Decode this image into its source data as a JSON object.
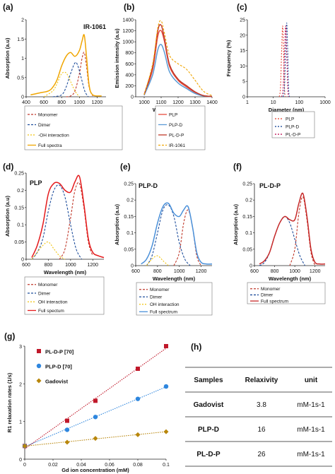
{
  "chart_data": [
    {
      "panel": "(a)",
      "type": "line",
      "title": "IR-1061",
      "xlabel": "Wavelength (nm)",
      "ylabel": "Absorption (a.u)",
      "xlim": [
        400,
        1300
      ],
      "ylim": [
        0,
        2
      ],
      "xticks": [
        400,
        600,
        800,
        1000,
        1200
      ],
      "yticks": [
        0,
        0.5,
        1,
        1.5,
        2
      ],
      "series": [
        {
          "name": "Monomer",
          "color": "#c0392b",
          "dash": "3,2",
          "x": [
            850,
            900,
            950,
            1000,
            1030,
            1055,
            1080,
            1110,
            1150
          ],
          "y": [
            0,
            0.02,
            0.15,
            0.6,
            1.0,
            1.15,
            0.8,
            0.25,
            0.02
          ]
        },
        {
          "name": "Dimer",
          "color": "#1f4e9c",
          "dash": "3,2",
          "x": [
            700,
            800,
            850,
            900,
            950,
            980,
            1020,
            1060,
            1100
          ],
          "y": [
            0,
            0.05,
            0.25,
            0.6,
            0.88,
            0.82,
            0.5,
            0.15,
            0
          ]
        },
        {
          "name": "-OH interaction",
          "color": "#f1c40f",
          "dash": "2,2",
          "x": [
            600,
            700,
            750,
            800,
            850,
            900,
            950,
            1000
          ],
          "y": [
            0,
            0.15,
            0.35,
            0.6,
            0.62,
            0.4,
            0.15,
            0
          ]
        },
        {
          "name": "Full spectra",
          "color": "#f0a500",
          "dash": "",
          "x": [
            450,
            550,
            650,
            700,
            750,
            800,
            850,
            900,
            950,
            1000,
            1030,
            1055,
            1080,
            1110,
            1150,
            1250
          ],
          "y": [
            0.05,
            0.1,
            0.15,
            0.25,
            0.45,
            0.8,
            1.05,
            1.15,
            1.05,
            1.2,
            1.45,
            1.6,
            1.05,
            0.3,
            0.05,
            0.02
          ]
        }
      ]
    },
    {
      "panel": "(b)",
      "type": "line",
      "xlabel": "Wavelength (nm)",
      "ylabel": "Emission intensity (a.u)",
      "xlim": [
        950,
        1400
      ],
      "ylim": [
        0,
        1400
      ],
      "xticks": [
        1000,
        1100,
        1200,
        1300,
        1400
      ],
      "yticks": [
        0,
        200,
        400,
        600,
        800,
        1000,
        1200,
        1400
      ],
      "series": [
        {
          "name": "PLP",
          "color": "#e74c3c",
          "dash": "",
          "x": [
            1000,
            1050,
            1080,
            1100,
            1120,
            1150,
            1200,
            1250,
            1300,
            1350,
            1400
          ],
          "y": [
            30,
            500,
            1100,
            1200,
            1000,
            550,
            300,
            180,
            80,
            20,
            5
          ]
        },
        {
          "name": "PLP-D",
          "color": "#5b9bd5",
          "dash": "",
          "x": [
            1000,
            1050,
            1080,
            1100,
            1120,
            1150,
            1200,
            1250,
            1300,
            1350,
            1400
          ],
          "y": [
            30,
            400,
            850,
            950,
            800,
            450,
            250,
            150,
            60,
            15,
            5
          ]
        },
        {
          "name": "PL-D-P",
          "color": "#c0392b",
          "dash": "",
          "x": [
            1000,
            1050,
            1080,
            1100,
            1120,
            1150,
            1200,
            1250,
            1300,
            1350,
            1400
          ],
          "y": [
            40,
            550,
            1200,
            1300,
            1050,
            580,
            320,
            200,
            90,
            20,
            5
          ]
        },
        {
          "name": "IR-1061",
          "color": "#f0a500",
          "dash": "3,2",
          "x": [
            1000,
            1050,
            1080,
            1100,
            1120,
            1150,
            1200,
            1250,
            1300,
            1350,
            1400
          ],
          "y": [
            40,
            600,
            1250,
            1380,
            1150,
            750,
            600,
            500,
            300,
            100,
            20
          ]
        }
      ]
    },
    {
      "panel": "(c)",
      "type": "line",
      "xlabel": "Diameter (nm)",
      "ylabel": "Frequency (%)",
      "xlim": [
        1,
        1000
      ],
      "xscale": "log",
      "ylim": [
        0,
        25
      ],
      "xticks": [
        1,
        10,
        100,
        1000
      ],
      "yticks": [
        0,
        5,
        10,
        15,
        20,
        25
      ],
      "series": [
        {
          "name": "PLP",
          "color": "#e74c3c",
          "dash": "2,2",
          "x": [
            17,
            19,
            21,
            23,
            25,
            27,
            29
          ],
          "y": [
            0,
            3,
            15,
            23,
            15,
            3,
            0
          ]
        },
        {
          "name": "PLP-D",
          "color": "#1f4e9c",
          "dash": "2,2",
          "x": [
            24,
            27,
            30,
            33,
            36,
            39,
            42
          ],
          "y": [
            0,
            3,
            15,
            24,
            15,
            3,
            0
          ]
        },
        {
          "name": "PL-D-P",
          "color": "#c2185b",
          "dash": "2,2",
          "x": [
            21,
            24,
            27,
            30,
            33,
            36,
            39
          ],
          "y": [
            0,
            3,
            14,
            23,
            14,
            3,
            0
          ]
        }
      ]
    },
    {
      "panel": "(d)",
      "type": "line",
      "title": "PLP",
      "xlabel": "Wavelength (nm)",
      "ylabel": "Absorption (a.u)",
      "xlim": [
        600,
        1300
      ],
      "ylim": [
        0,
        0.25
      ],
      "xticks": [
        600,
        800,
        1000,
        1200
      ],
      "yticks": [
        0,
        0.05,
        0.1,
        0.15,
        0.2,
        0.25
      ],
      "series": [
        {
          "name": "Monomer",
          "color": "#c0392b",
          "dash": "3,2",
          "x": [
            900,
            950,
            1000,
            1040,
            1080,
            1120,
            1160,
            1200
          ],
          "y": [
            0,
            0.03,
            0.12,
            0.2,
            0.22,
            0.15,
            0.05,
            0.01
          ]
        },
        {
          "name": "Dimer",
          "color": "#1f4e9c",
          "dash": "3,2",
          "x": [
            650,
            700,
            750,
            800,
            850,
            900,
            950,
            1000,
            1050,
            1100
          ],
          "y": [
            0,
            0.02,
            0.06,
            0.14,
            0.2,
            0.215,
            0.18,
            0.1,
            0.03,
            0
          ]
        },
        {
          "name": "OH interaction",
          "color": "#f1c40f",
          "dash": "2,2",
          "x": [
            650,
            700,
            750,
            800,
            850,
            900,
            950
          ],
          "y": [
            0,
            0.02,
            0.04,
            0.05,
            0.03,
            0.01,
            0
          ]
        },
        {
          "name": "Full spectum",
          "color": "#e41a1c",
          "dash": "",
          "x": [
            650,
            700,
            750,
            800,
            850,
            900,
            950,
            1000,
            1040,
            1080,
            1120,
            1160,
            1200,
            1250,
            1300
          ],
          "y": [
            0.005,
            0.04,
            0.1,
            0.19,
            0.22,
            0.22,
            0.2,
            0.195,
            0.225,
            0.24,
            0.16,
            0.06,
            0.02,
            0.01,
            0.005
          ]
        }
      ]
    },
    {
      "panel": "(e)",
      "type": "line",
      "title": "PLP-D",
      "xlabel": "Wavelength (nm)",
      "ylabel": "Absorption (a.u)",
      "xlim": [
        600,
        1300
      ],
      "ylim": [
        0,
        0.25
      ],
      "xticks": [
        600,
        800,
        1000,
        1200
      ],
      "yticks": [
        0,
        0.05,
        0.1,
        0.15,
        0.2,
        0.25
      ],
      "series": [
        {
          "name": "Monomer",
          "color": "#c0392b",
          "dash": "3,2",
          "x": [
            950,
            1000,
            1040,
            1080,
            1120,
            1160,
            1200
          ],
          "y": [
            0,
            0.04,
            0.13,
            0.17,
            0.12,
            0.03,
            0
          ]
        },
        {
          "name": "Dimer",
          "color": "#1f4e9c",
          "dash": "3,2",
          "x": [
            700,
            750,
            800,
            850,
            900,
            950,
            1000,
            1050,
            1100
          ],
          "y": [
            0,
            0.03,
            0.1,
            0.17,
            0.185,
            0.15,
            0.07,
            0.02,
            0
          ]
        },
        {
          "name": "OH interaction",
          "color": "#f1c40f",
          "dash": "2,2",
          "x": [
            700,
            750,
            800,
            850,
            900
          ],
          "y": [
            0,
            0.02,
            0.03,
            0.015,
            0
          ]
        },
        {
          "name": "Full spectrum",
          "color": "#4a90d9",
          "dash": "",
          "x": [
            650,
            700,
            750,
            800,
            850,
            900,
            950,
            1000,
            1040,
            1080,
            1120,
            1160,
            1200,
            1250,
            1300
          ],
          "y": [
            0.005,
            0.02,
            0.06,
            0.13,
            0.18,
            0.19,
            0.16,
            0.15,
            0.17,
            0.18,
            0.12,
            0.04,
            0.01,
            0.005,
            0.005
          ]
        }
      ]
    },
    {
      "panel": "(f)",
      "type": "line",
      "title": "PL-D-P",
      "xlabel": "Wavelength (nm)",
      "ylabel": "Absorption (a.u)",
      "xlim": [
        600,
        1300
      ],
      "ylim": [
        0,
        0.25
      ],
      "xticks": [
        600,
        800,
        1000,
        1200
      ],
      "yticks": [
        0,
        0.05,
        0.1,
        0.15,
        0.2,
        0.25
      ],
      "series": [
        {
          "name": "Monomer",
          "color": "#c0392b",
          "dash": "3,2",
          "x": [
            950,
            1000,
            1040,
            1080,
            1120,
            1160,
            1200
          ],
          "y": [
            0,
            0.05,
            0.16,
            0.21,
            0.14,
            0.04,
            0
          ]
        },
        {
          "name": "Dimer",
          "color": "#1f4e9c",
          "dash": "3,2",
          "x": [
            650,
            700,
            750,
            800,
            850,
            900,
            950,
            1000,
            1050,
            1100
          ],
          "y": [
            0,
            0.01,
            0.04,
            0.09,
            0.13,
            0.15,
            0.13,
            0.08,
            0.03,
            0
          ]
        },
        {
          "name": "Full spectrum",
          "color": "#c62828",
          "dash": "",
          "x": [
            650,
            700,
            750,
            800,
            850,
            900,
            950,
            1000,
            1040,
            1080,
            1120,
            1160,
            1200,
            1250,
            1300
          ],
          "y": [
            0.005,
            0.015,
            0.04,
            0.09,
            0.13,
            0.15,
            0.14,
            0.14,
            0.19,
            0.22,
            0.15,
            0.05,
            0.01,
            0.005,
            0.005
          ]
        }
      ]
    },
    {
      "panel": "(g)",
      "type": "scatter",
      "xlabel": "Gd ion concentration (mM)",
      "ylabel": "R1 relaxation rates (1/s)",
      "xlim": [
        0,
        0.1
      ],
      "ylim": [
        0,
        3
      ],
      "xticks": [
        "0",
        "0.02",
        "0.04",
        "0.06",
        "0.08",
        "0.1"
      ],
      "yticks": [
        "0",
        "1",
        "2",
        "3"
      ],
      "series": [
        {
          "name": "PL-D-P [70]",
          "color": "#c0182a",
          "marker": "square",
          "x": [
            0,
            0.03,
            0.05,
            0.08,
            0.1
          ],
          "y": [
            0.35,
            1.02,
            1.55,
            2.4,
            3.0
          ]
        },
        {
          "name": "PLP-D [70]",
          "color": "#2e86de",
          "marker": "circle",
          "x": [
            0,
            0.03,
            0.05,
            0.08,
            0.1
          ],
          "y": [
            0.35,
            0.78,
            1.12,
            1.6,
            1.93
          ]
        },
        {
          "name": "Gadovist",
          "color": "#b8860b",
          "marker": "diamond",
          "x": [
            0,
            0.03,
            0.05,
            0.08,
            0.1
          ],
          "y": [
            0.35,
            0.45,
            0.55,
            0.65,
            0.73
          ]
        }
      ]
    },
    {
      "panel": "(h)",
      "type": "table",
      "columns": [
        "Samples",
        "Relaxivity",
        "unit"
      ],
      "rows": [
        [
          "Gadovist",
          "3.8",
          "mM-1s-1"
        ],
        [
          "PLP-D",
          "16",
          "mM-1s-1"
        ],
        [
          "PL-D-P",
          "26",
          "mM-1s-1"
        ]
      ]
    }
  ]
}
